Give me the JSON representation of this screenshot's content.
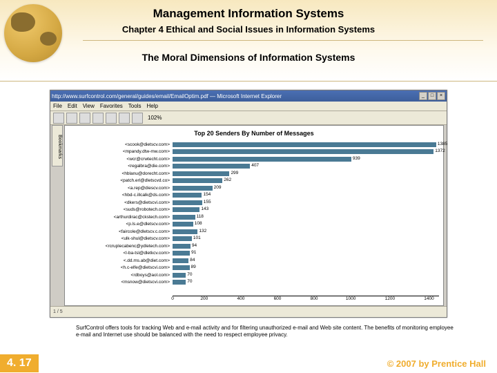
{
  "header": {
    "title": "Management Information Systems",
    "chapter": "Chapter 4 Ethical and Social Issues in Information Systems",
    "subtitle": "The Moral Dimensions of Information Systems"
  },
  "browser": {
    "window_title": "http://www.surfcontrol.com/general/guides/email/EmailOptim.pdf — Microsoft Internet Explorer",
    "menu": [
      "File",
      "Edit",
      "View",
      "Favorites",
      "Tools",
      "Help"
    ],
    "zoom": "102%",
    "status": "1 / 5"
  },
  "chart": {
    "type": "bar",
    "title": "Top 20 Senders By Number of Messages",
    "title_fontsize": 9,
    "bar_color": "#4a7a94",
    "background_color": "#ffffff",
    "xlim_max": 1400,
    "xaxis_ticks": [
      "0",
      "200",
      "400",
      "600",
      "800",
      "1000",
      "1200",
      "1400"
    ],
    "bars": [
      {
        "label": "<scook@dietscv.com>",
        "value": 1385
      },
      {
        "label": "<mpandy.dtw-mw.com>",
        "value": 1372
      },
      {
        "label": "<wcr@crwtecht.com>",
        "value": 939
      },
      {
        "label": "<regalbra@die.com>",
        "value": 407
      },
      {
        "label": "<hblanu@dorecht.com>",
        "value": 299
      },
      {
        "label": "<patch.erl@dletscvd.co>",
        "value": 262
      },
      {
        "label": "<a.rep@diescv.com>",
        "value": 209
      },
      {
        "label": "<hbd-c.illcalk@ds.com>",
        "value": 154
      },
      {
        "label": "<dkers@dietscvi.com>",
        "value": 155
      },
      {
        "label": "<suds@robotech.com>",
        "value": 143
      },
      {
        "label": "<arthurdirac@ckstech.com>",
        "value": 118
      },
      {
        "label": "<p.ls.e@dletscv.com>",
        "value": 108
      },
      {
        "label": "<faircole@dletscv.c.com>",
        "value": 132
      },
      {
        "label": "<ulk-shul@dietscv.com>",
        "value": 101
      },
      {
        "label": "<rcruplecabenc@ydletech.com>",
        "value": 94
      },
      {
        "label": "<l-ba-tsl@dletkcv.com>",
        "value": 91
      },
      {
        "label": "<.dd.ms.ab@diet.com>",
        "value": 84
      },
      {
        "label": "<h.c-elfe@dietscvi.com>",
        "value": 89
      },
      {
        "label": "<rdboys@aol.com>",
        "value": 70
      },
      {
        "label": "<msnow@dietscvi.com>",
        "value": 70
      }
    ]
  },
  "caption": "SurfControl offers tools for tracking Web and e-mail activity and for filtering unauthorized e-mail and Web site content. The benefits of monitoring employee e-mail and Internet use should be balanced with the need to respect employee privacy.",
  "footer": {
    "page": "4. 17",
    "copyright": "© 2007 by Prentice Hall"
  },
  "colors": {
    "header_gradient_top": "#f7e8bf",
    "header_gradient_bottom": "#ffffff",
    "accent": "#f0ad2e",
    "rule": "#cdb77e"
  }
}
